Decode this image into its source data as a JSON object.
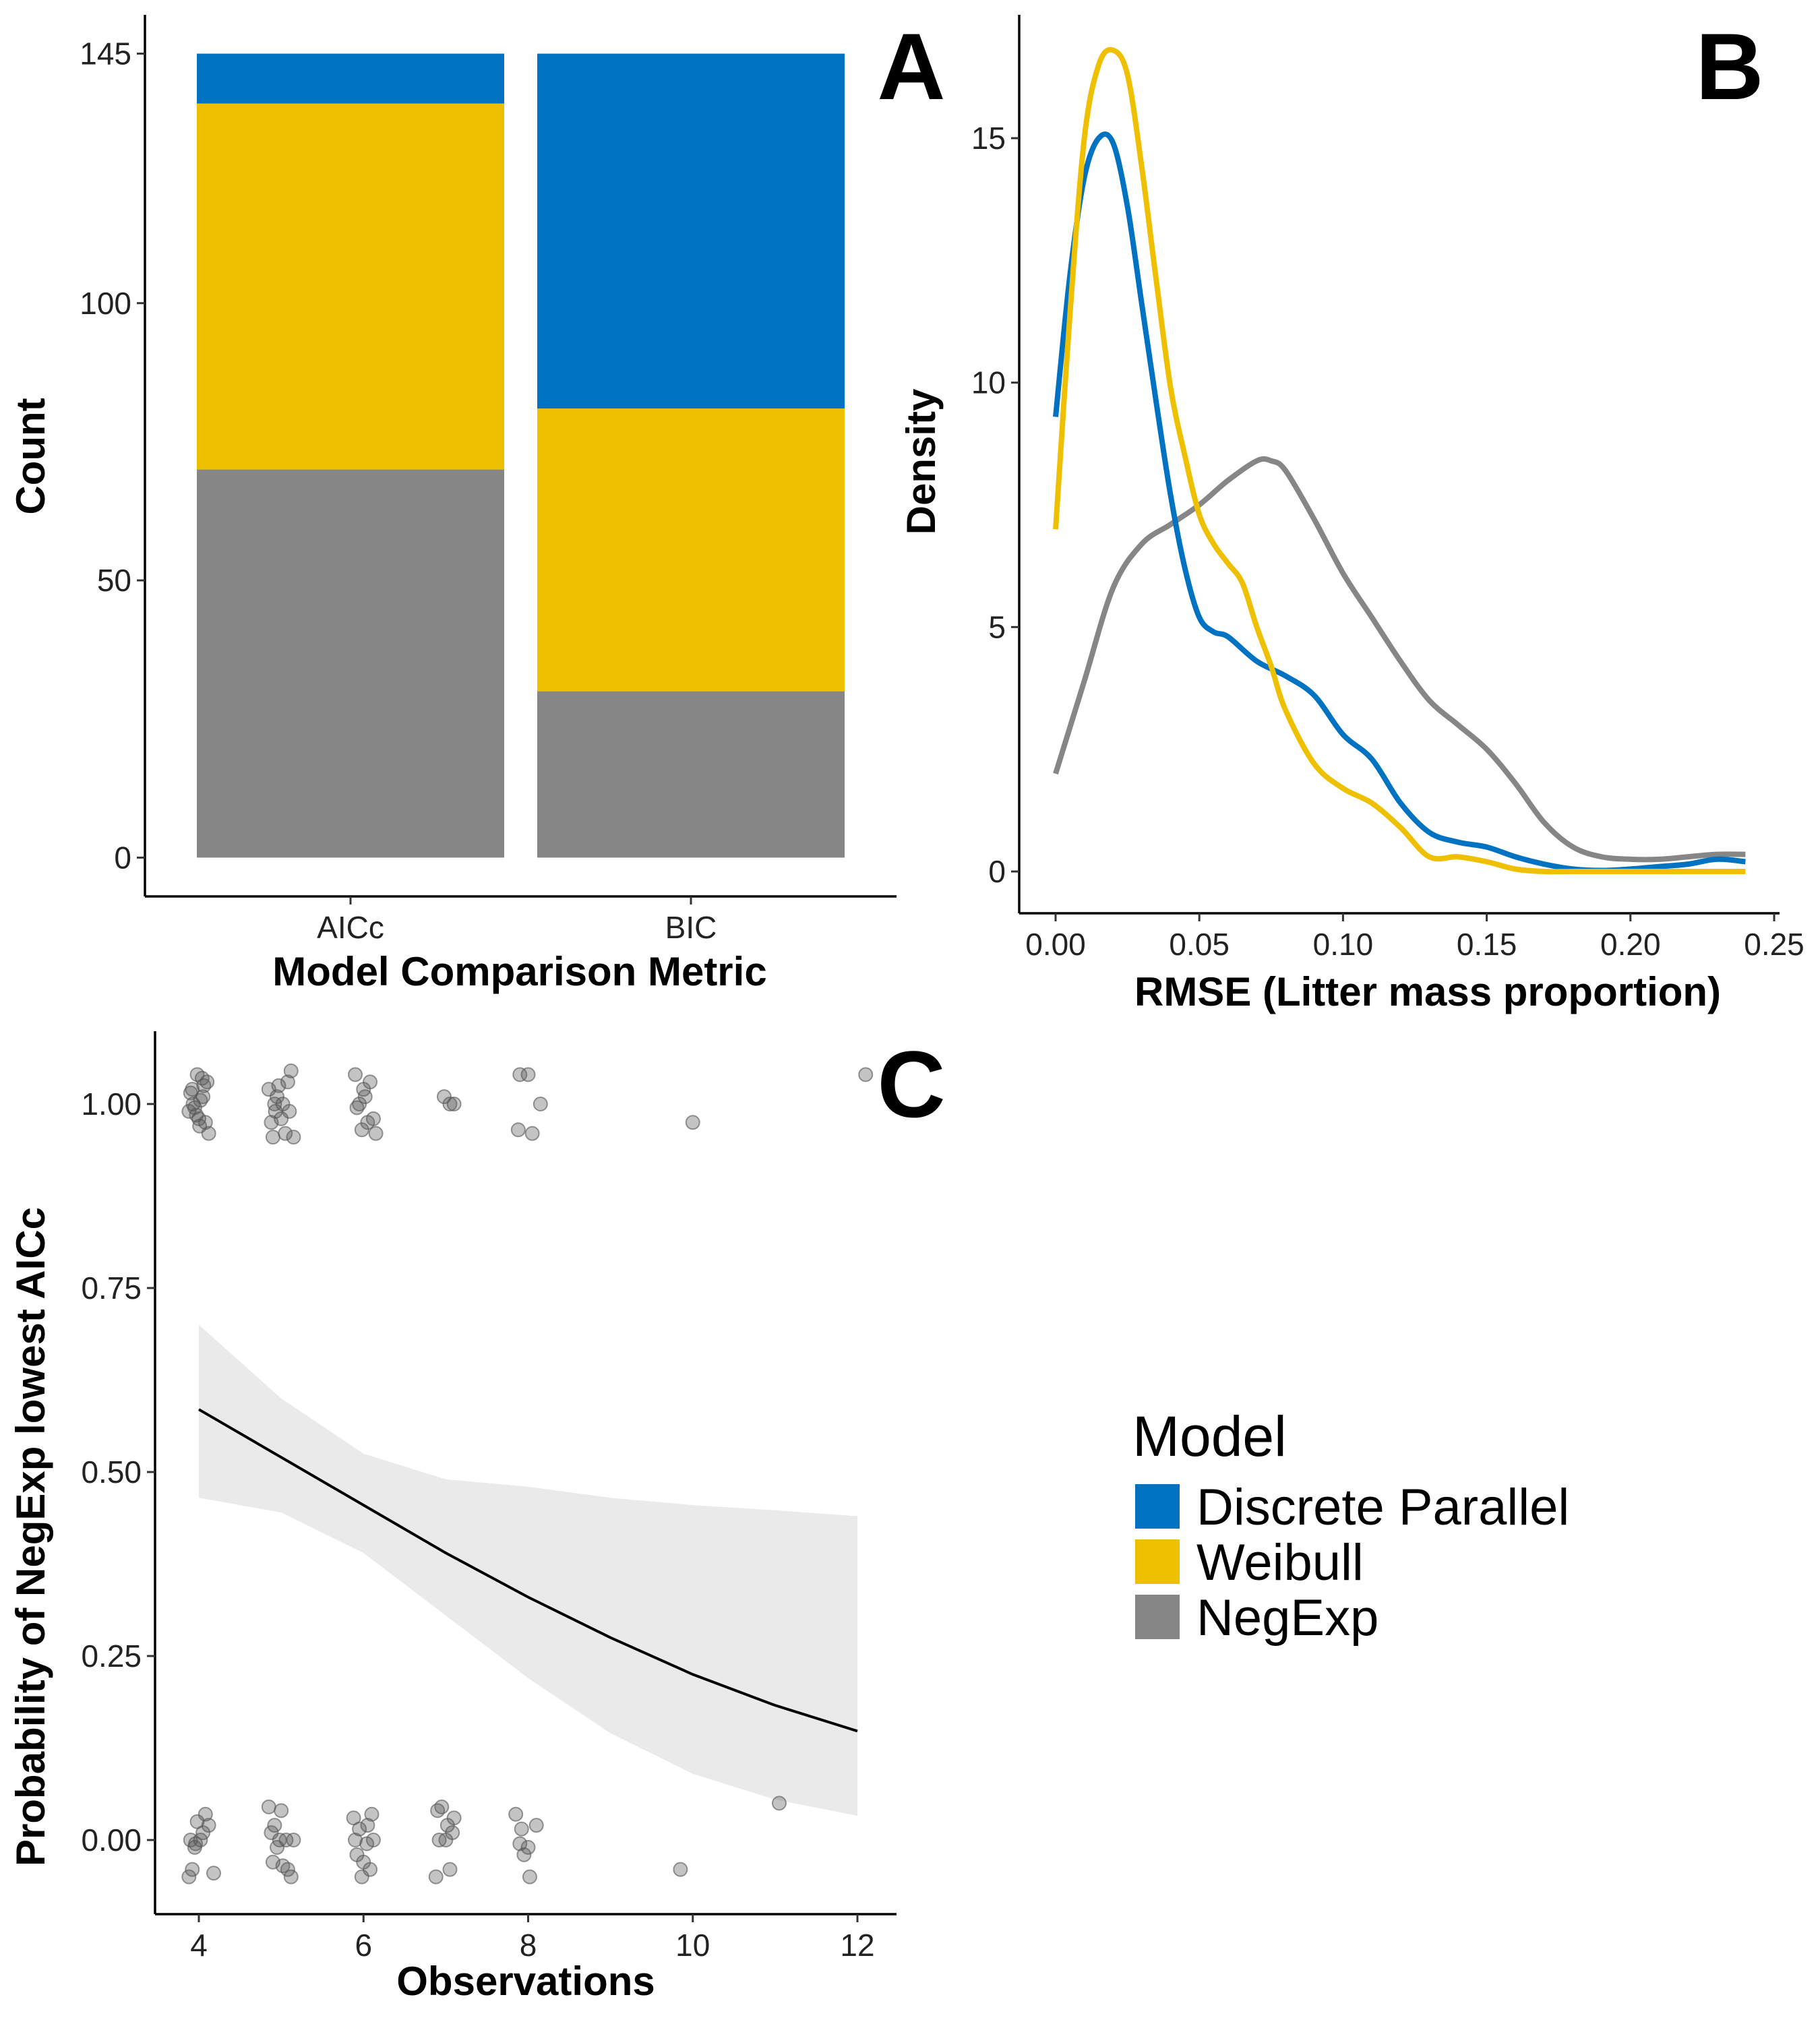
{
  "colors": {
    "discrete_parallel": "#0072C2",
    "weibull": "#EEC000",
    "negexp": "#868686",
    "ci_band": "#EAEAEA",
    "fit_line": "#000000",
    "points": "#555555"
  },
  "panels": {
    "A": {
      "label": "A"
    },
    "B": {
      "label": "B"
    },
    "C": {
      "label": "C"
    }
  },
  "legend": {
    "title": "Model",
    "items": [
      {
        "label": "Discrete Parallel",
        "color": "#0072C2"
      },
      {
        "label": "Weibull",
        "color": "#EEC000"
      },
      {
        "label": "NegExp",
        "color": "#868686"
      }
    ]
  },
  "chart_data": [
    {
      "panel": "A",
      "type": "bar",
      "stacked": true,
      "xlabel": "Model Comparison Metric",
      "ylabel": "Count",
      "categories": [
        "AICc",
        "BIC"
      ],
      "series": [
        {
          "name": "NegExp",
          "values": [
            70,
            30
          ]
        },
        {
          "name": "Weibull",
          "values": [
            66,
            51
          ]
        },
        {
          "name": "Discrete Parallel",
          "values": [
            9,
            64
          ]
        }
      ],
      "ylim": [
        -7,
        152
      ],
      "yticks": [
        0,
        50,
        100,
        145
      ],
      "ytick_labels": [
        "0",
        "50",
        "100",
        "145"
      ]
    },
    {
      "panel": "B",
      "type": "line",
      "xlabel": "RMSE (Litter mass proportion)",
      "ylabel": "Density",
      "xlim": [
        -0.012,
        0.252
      ],
      "ylim": [
        -0.9,
        17.6
      ],
      "xticks": [
        0.0,
        0.05,
        0.1,
        0.15,
        0.2,
        0.25
      ],
      "xtick_labels": [
        "0.00",
        "0.05",
        "0.10",
        "0.15",
        "0.20",
        "0.25"
      ],
      "yticks": [
        0,
        5,
        10,
        15
      ],
      "ytick_labels": [
        "0",
        "5",
        "10",
        "15"
      ],
      "series": [
        {
          "name": "NegExp",
          "x": [
            0.0,
            0.01,
            0.02,
            0.03,
            0.04,
            0.05,
            0.06,
            0.07,
            0.075,
            0.08,
            0.09,
            0.1,
            0.11,
            0.12,
            0.13,
            0.14,
            0.15,
            0.16,
            0.17,
            0.18,
            0.19,
            0.2,
            0.21,
            0.22,
            0.23,
            0.24
          ],
          "y": [
            2.0,
            3.9,
            5.8,
            6.7,
            7.1,
            7.5,
            8.0,
            8.4,
            8.4,
            8.2,
            7.2,
            6.1,
            5.2,
            4.3,
            3.5,
            3.0,
            2.5,
            1.8,
            1.0,
            0.5,
            0.3,
            0.25,
            0.25,
            0.3,
            0.35,
            0.35
          ]
        },
        {
          "name": "Discrete Parallel",
          "x": [
            0.0,
            0.005,
            0.01,
            0.015,
            0.02,
            0.025,
            0.03,
            0.035,
            0.04,
            0.045,
            0.05,
            0.055,
            0.06,
            0.07,
            0.08,
            0.09,
            0.1,
            0.11,
            0.12,
            0.13,
            0.14,
            0.15,
            0.16,
            0.17,
            0.18,
            0.19,
            0.2,
            0.21,
            0.22,
            0.23,
            0.24
          ],
          "y": [
            9.3,
            12.2,
            14.2,
            15.0,
            14.9,
            13.6,
            11.6,
            9.6,
            7.7,
            6.2,
            5.2,
            4.9,
            4.8,
            4.3,
            4.0,
            3.6,
            2.8,
            2.3,
            1.4,
            0.8,
            0.6,
            0.5,
            0.3,
            0.15,
            0.05,
            0.02,
            0.05,
            0.1,
            0.15,
            0.25,
            0.2
          ]
        },
        {
          "name": "Weibull",
          "x": [
            0.0,
            0.005,
            0.01,
            0.015,
            0.02,
            0.025,
            0.03,
            0.035,
            0.04,
            0.045,
            0.05,
            0.055,
            0.06,
            0.065,
            0.07,
            0.075,
            0.08,
            0.09,
            0.1,
            0.11,
            0.12,
            0.13,
            0.14,
            0.15,
            0.16,
            0.17,
            0.18,
            0.2,
            0.22,
            0.24
          ],
          "y": [
            7.0,
            11.4,
            15.0,
            16.5,
            16.8,
            16.3,
            14.4,
            12.1,
            9.9,
            8.5,
            7.3,
            6.7,
            6.3,
            5.9,
            5.0,
            4.2,
            3.3,
            2.2,
            1.7,
            1.4,
            0.9,
            0.3,
            0.3,
            0.2,
            0.05,
            0.0,
            0.0,
            0.0,
            0.0,
            0.0
          ]
        }
      ]
    },
    {
      "panel": "C",
      "type": "scatter",
      "xlabel": "Observations",
      "ylabel": "Probability of NegExp lowest AICc",
      "xlim": [
        3.5,
        12.5
      ],
      "ylim": [
        -0.09,
        1.1
      ],
      "xticks": [
        4,
        6,
        8,
        10,
        12
      ],
      "xtick_labels": [
        "4",
        "6",
        "8",
        "10",
        "12"
      ],
      "yticks": [
        0.0,
        0.25,
        0.5,
        0.75,
        1.0
      ],
      "ytick_labels": [
        "0.00",
        "0.25",
        "0.50",
        "0.75",
        "1.00"
      ],
      "fit": {
        "x": [
          4,
          5,
          6,
          7,
          8,
          9,
          10,
          11,
          12
        ],
        "y": [
          0.585,
          0.52,
          0.455,
          0.39,
          0.33,
          0.275,
          0.225,
          0.183,
          0.148
        ],
        "lower": [
          0.465,
          0.445,
          0.39,
          0.305,
          0.22,
          0.145,
          0.09,
          0.055,
          0.033
        ],
        "upper": [
          0.7,
          0.6,
          0.525,
          0.49,
          0.48,
          0.465,
          0.455,
          0.448,
          0.44
        ]
      },
      "points": [
        [
          3.92,
          1.02
        ],
        [
          3.98,
          1.04
        ],
        [
          4.05,
          1.01
        ],
        [
          3.88,
          0.99
        ],
        [
          4.0,
          0.98
        ],
        [
          4.1,
          1.03
        ],
        [
          3.95,
          0.995
        ],
        [
          4.02,
          1.005
        ],
        [
          4.08,
          0.975
        ],
        [
          3.9,
          1.015
        ],
        [
          4.04,
          1.035
        ],
        [
          3.97,
          0.985
        ],
        [
          4.12,
          0.96
        ],
        [
          3.93,
          1.0
        ],
        [
          4.06,
          1.025
        ],
        [
          4.01,
          0.97
        ],
        [
          4.85,
          1.02
        ],
        [
          4.92,
          1.0
        ],
        [
          5.0,
          0.98
        ],
        [
          5.08,
          1.03
        ],
        [
          4.9,
          0.955
        ],
        [
          5.05,
          0.96
        ],
        [
          4.95,
          1.01
        ],
        [
          5.12,
          1.045
        ],
        [
          4.88,
          0.975
        ],
        [
          5.02,
          1.0
        ],
        [
          5.1,
          0.99
        ],
        [
          4.97,
          1.025
        ],
        [
          5.15,
          0.955
        ],
        [
          4.93,
          0.99
        ],
        [
          5.9,
          1.04
        ],
        [
          6.0,
          1.02
        ],
        [
          6.08,
          1.03
        ],
        [
          5.95,
          1.0
        ],
        [
          6.12,
          0.98
        ],
        [
          5.98,
          0.965
        ],
        [
          6.05,
          0.975
        ],
        [
          6.15,
          0.96
        ],
        [
          5.92,
          0.995
        ],
        [
          6.02,
          1.01
        ],
        [
          6.98,
          1.01
        ],
        [
          7.05,
          1.0
        ],
        [
          7.1,
          1.0
        ],
        [
          7.9,
          1.04
        ],
        [
          8.0,
          1.04
        ],
        [
          7.88,
          0.965
        ],
        [
          8.05,
          0.96
        ],
        [
          8.15,
          1.0
        ],
        [
          10.0,
          0.975
        ],
        [
          12.1,
          1.04
        ],
        [
          3.9,
          0.0
        ],
        [
          3.95,
          -0.01
        ],
        [
          4.02,
          0.0
        ],
        [
          4.08,
          0.035
        ],
        [
          4.12,
          0.02
        ],
        [
          3.88,
          -0.05
        ],
        [
          3.92,
          -0.04
        ],
        [
          4.18,
          -0.045
        ],
        [
          3.98,
          0.025
        ],
        [
          4.05,
          0.01
        ],
        [
          3.96,
          -0.005
        ],
        [
          4.85,
          0.045
        ],
        [
          4.92,
          0.02
        ],
        [
          5.0,
          0.04
        ],
        [
          5.06,
          0.0
        ],
        [
          4.9,
          -0.03
        ],
        [
          5.02,
          -0.035
        ],
        [
          5.12,
          -0.05
        ],
        [
          4.95,
          -0.01
        ],
        [
          5.08,
          -0.04
        ],
        [
          4.98,
          0.0
        ],
        [
          5.15,
          0.0
        ],
        [
          4.88,
          0.01
        ],
        [
          5.88,
          0.03
        ],
        [
          5.95,
          0.015
        ],
        [
          6.05,
          0.02
        ],
        [
          6.1,
          0.035
        ],
        [
          5.92,
          -0.02
        ],
        [
          6.0,
          -0.03
        ],
        [
          6.08,
          -0.04
        ],
        [
          5.98,
          -0.05
        ],
        [
          6.12,
          0.0
        ],
        [
          5.9,
          0.0
        ],
        [
          6.04,
          -0.005
        ],
        [
          6.9,
          0.04
        ],
        [
          6.95,
          0.045
        ],
        [
          7.02,
          0.02
        ],
        [
          7.08,
          0.01
        ],
        [
          6.92,
          0.0
        ],
        [
          7.05,
          -0.04
        ],
        [
          7.1,
          0.03
        ],
        [
          6.88,
          -0.05
        ],
        [
          7.0,
          0.0
        ],
        [
          7.85,
          0.035
        ],
        [
          7.92,
          0.015
        ],
        [
          8.0,
          -0.01
        ],
        [
          8.1,
          0.02
        ],
        [
          7.9,
          -0.005
        ],
        [
          8.02,
          -0.05
        ],
        [
          7.95,
          -0.02
        ],
        [
          9.85,
          -0.04
        ],
        [
          11.05,
          0.05
        ]
      ]
    }
  ]
}
